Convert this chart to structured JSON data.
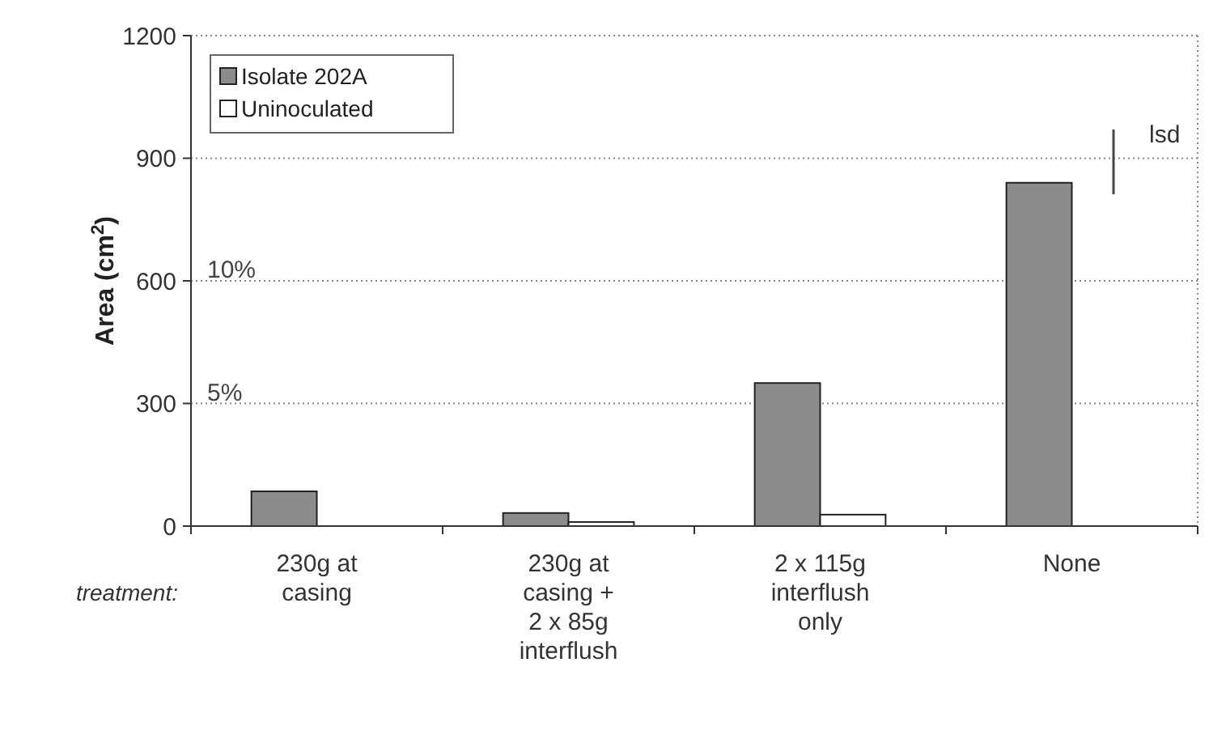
{
  "chart_data": {
    "type": "bar",
    "ylabel": "Area (cm$^{2}$)",
    "categories": [
      "230g at casing",
      "230g at casing + 2 x 85g interflush",
      "2 x 115g interflush only",
      "None"
    ],
    "series": [
      {
        "name": "Isolate 202A",
        "color": "#8c8c8c",
        "values": [
          85,
          32,
          350,
          840
        ]
      },
      {
        "name": "Uninoculated",
        "color": "#ffffff",
        "values": [
          0,
          10,
          28,
          0
        ]
      }
    ],
    "ylim": [
      0,
      1200
    ],
    "yticks": [
      0,
      300,
      600,
      900,
      1200
    ],
    "grid": "y",
    "legend": "top left",
    "annotations": [
      "10%",
      "5%",
      "lsd",
      "treatment:"
    ]
  }
}
